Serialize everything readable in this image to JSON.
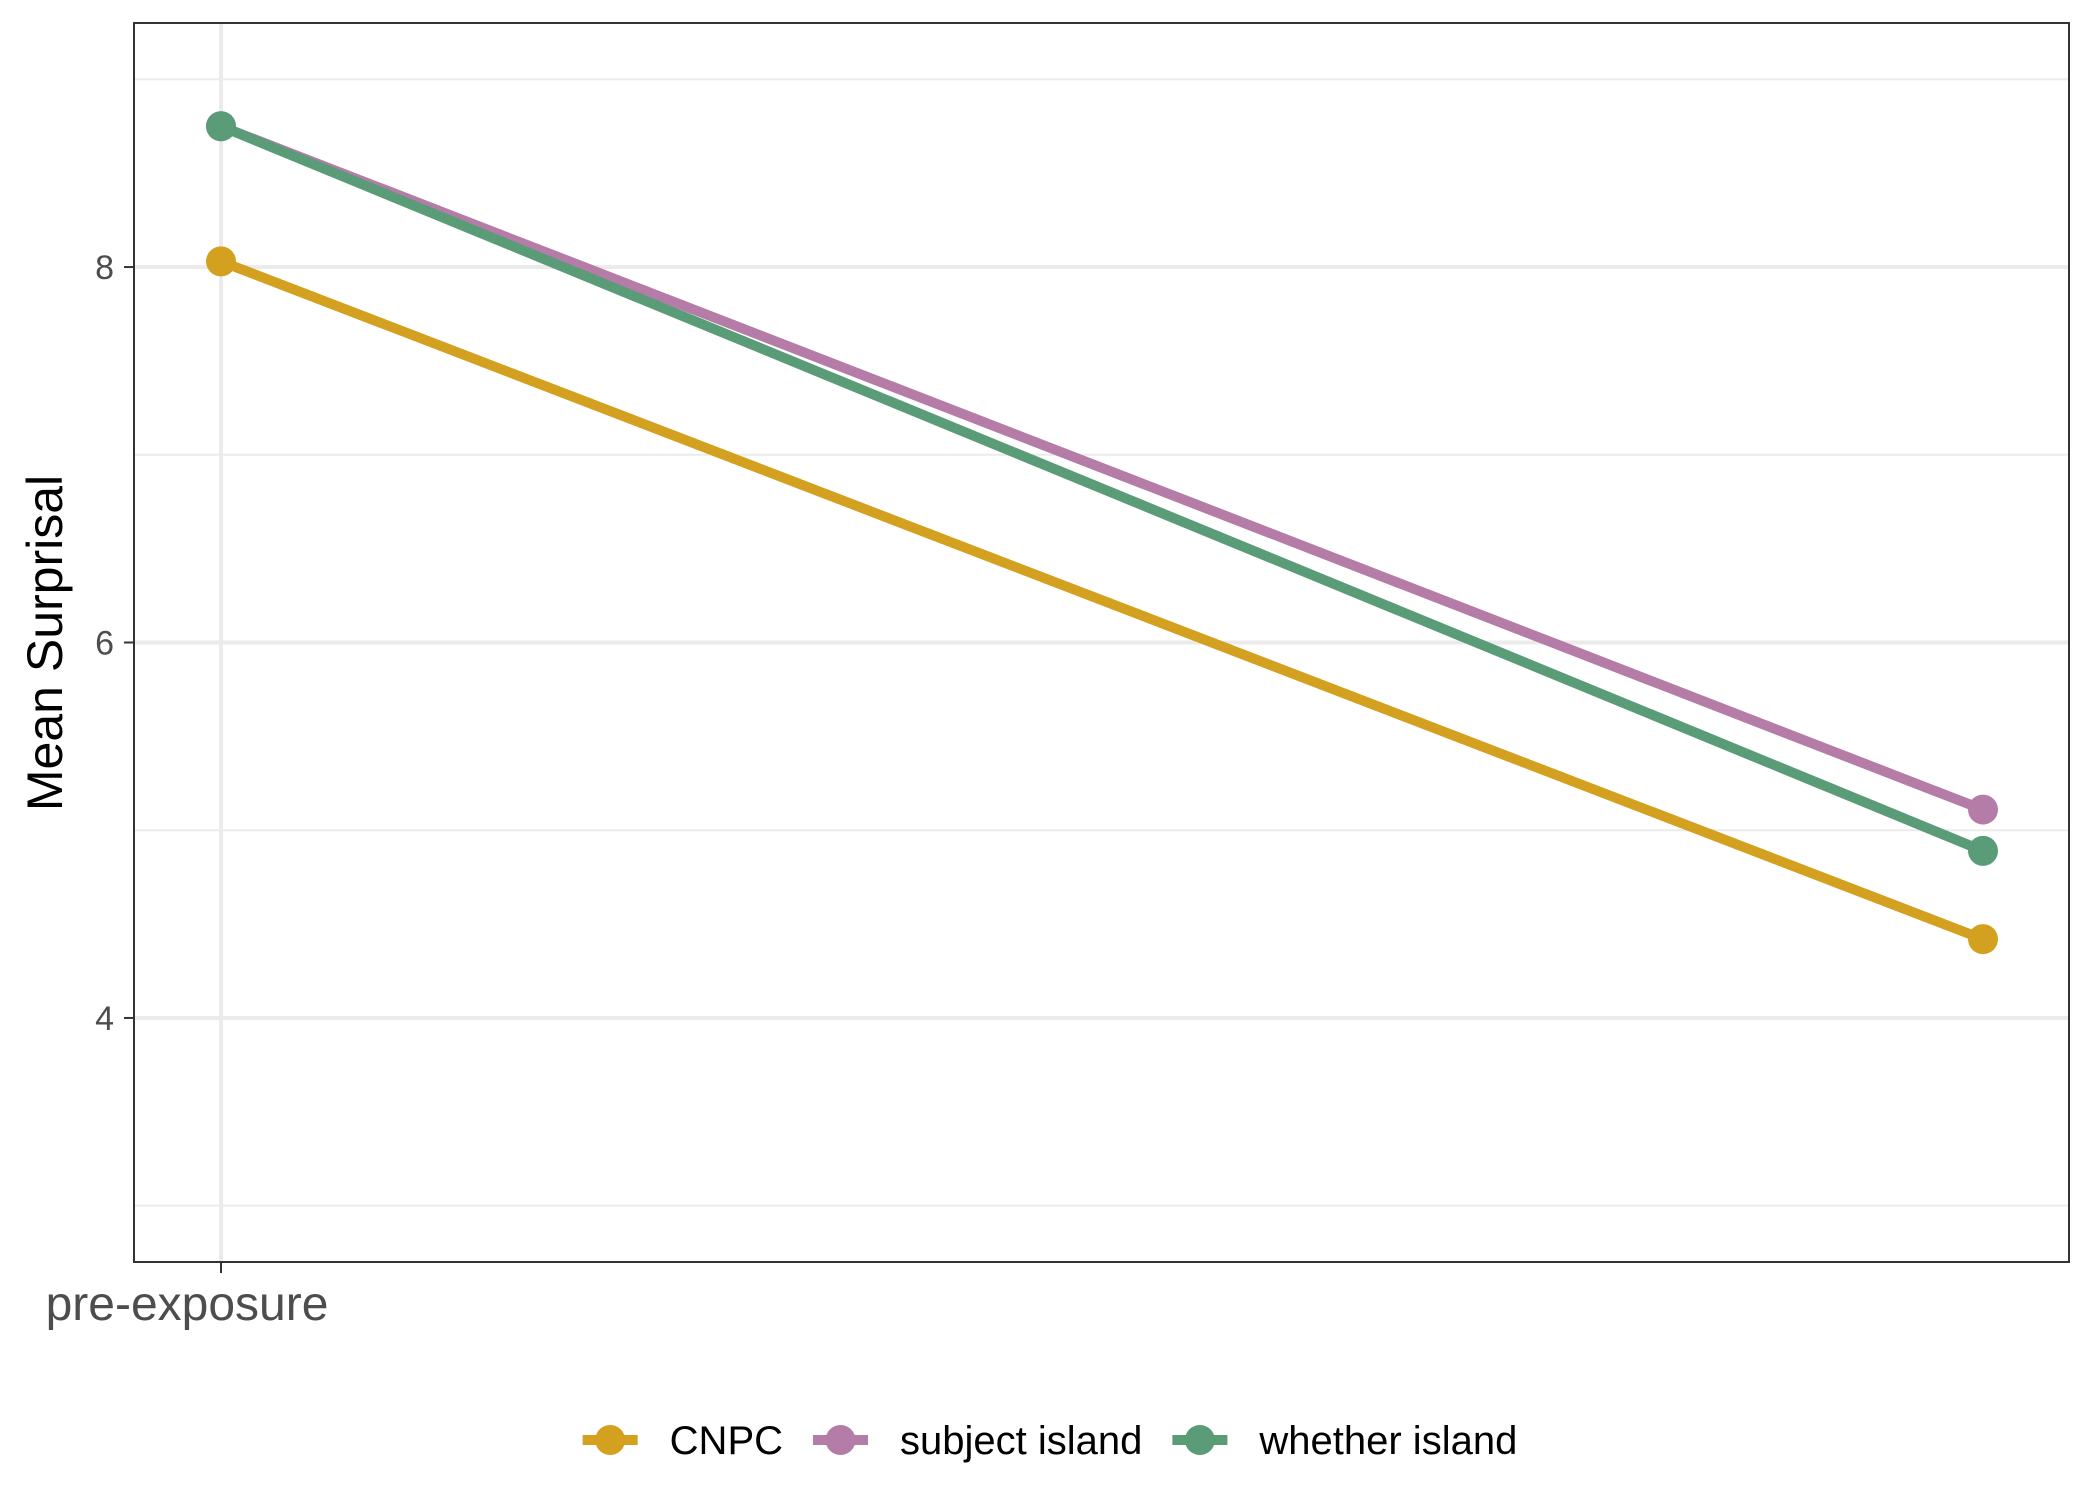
{
  "chart_data": {
    "type": "line",
    "title": "",
    "xlabel": "",
    "ylabel": "Mean Surprisal",
    "categories": [
      "pre-exposure",
      ""
    ],
    "x_tick_labels": [
      "pre-exposure"
    ],
    "ylim": [
      2.7,
      9.3
    ],
    "yticks": [
      4,
      6,
      8
    ],
    "minor_yticks": [
      3,
      5,
      7,
      9
    ],
    "grid": true,
    "legend_position": "bottom",
    "series": [
      {
        "name": "CNPC",
        "color": "#D4A020",
        "values": [
          8.03,
          4.42
        ]
      },
      {
        "name": "subject island",
        "color": "#B57CA8",
        "values": [
          8.75,
          5.11
        ]
      },
      {
        "name": "whether island",
        "color": "#5A9C78",
        "values": [
          8.75,
          4.89
        ]
      }
    ]
  }
}
